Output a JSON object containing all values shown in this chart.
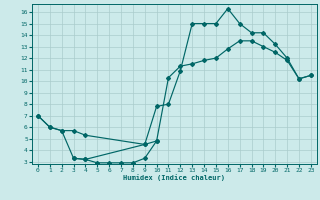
{
  "xlabel": "Humidex (Indice chaleur)",
  "bg_color": "#cceaea",
  "grid_color": "#aacccc",
  "line_color": "#006666",
  "xlim": [
    -0.5,
    23.5
  ],
  "ylim": [
    2.8,
    16.7
  ],
  "xticks": [
    0,
    1,
    2,
    3,
    4,
    5,
    6,
    7,
    8,
    9,
    10,
    11,
    12,
    13,
    14,
    15,
    16,
    17,
    18,
    19,
    20,
    21,
    22,
    23
  ],
  "yticks": [
    3,
    4,
    5,
    6,
    7,
    8,
    9,
    10,
    11,
    12,
    13,
    14,
    15,
    16
  ],
  "curve1_x": [
    0,
    1,
    2,
    3,
    4,
    9,
    10,
    11,
    12,
    13,
    14,
    15,
    16,
    17,
    18,
    19,
    20,
    21,
    22,
    23
  ],
  "curve1_y": [
    7.0,
    6.0,
    5.7,
    5.7,
    5.3,
    4.5,
    7.8,
    8.0,
    10.9,
    15.0,
    15.0,
    15.0,
    16.3,
    15.0,
    14.2,
    14.2,
    13.2,
    12.0,
    10.2,
    10.5
  ],
  "curve2_x": [
    0,
    1,
    2,
    3,
    4,
    9,
    10,
    11,
    12,
    13,
    14,
    15,
    16,
    17,
    18,
    19,
    20,
    21,
    22,
    23
  ],
  "curve2_y": [
    7.0,
    6.0,
    5.7,
    3.3,
    3.2,
    4.5,
    4.8,
    10.3,
    11.3,
    11.5,
    11.8,
    12.0,
    12.8,
    13.5,
    13.5,
    13.0,
    12.5,
    11.8,
    10.2,
    10.5
  ],
  "curve3_x": [
    3,
    4,
    5,
    6,
    7,
    8,
    9,
    10
  ],
  "curve3_y": [
    3.3,
    3.2,
    2.9,
    2.9,
    2.9,
    2.9,
    3.3,
    4.8
  ],
  "marker_size": 2.0,
  "line_width": 0.85
}
